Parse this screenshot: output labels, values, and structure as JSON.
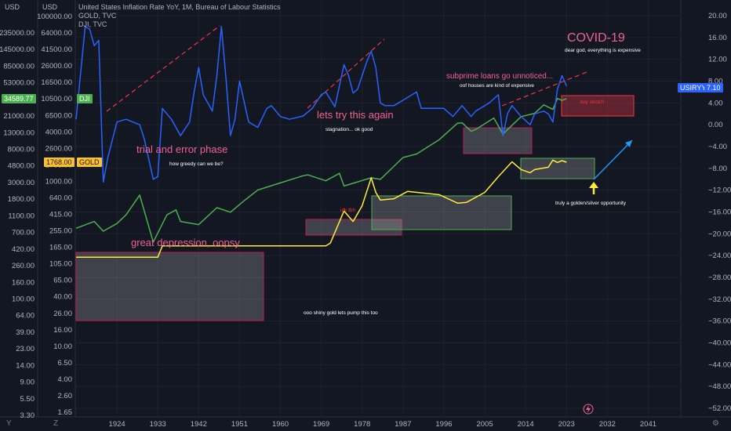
{
  "legend": {
    "line1": "United States Inflation Rate YoY, 1M, Bureau of Labour Statistics",
    "line2": "GOLD, TVC",
    "line3": "DJI, TVC"
  },
  "left_axis_1": {
    "unit": "USD",
    "ticks": [
      "235000.00",
      "145000.00",
      "85000.00",
      "53000.00",
      "34589.77",
      "21000.00",
      "13000.00",
      "8000.00",
      "4800.00",
      "3000.00",
      "1800.00",
      "1100.00",
      "700.00",
      "420.00",
      "260.00",
      "160.00",
      "100.00",
      "64.00",
      "39.00",
      "23.00",
      "14.00",
      "9.00",
      "5.50",
      "3.30"
    ]
  },
  "left_axis_2": {
    "unit": "USD",
    "ticks": [
      "100000.00",
      "64000.00",
      "41500.00",
      "26000.00",
      "16500.00",
      "10500.00",
      "6500.00",
      "4000.00",
      "2600.00",
      "1768.00",
      "1000.00",
      "640.00",
      "415.00",
      "255.00",
      "165.00",
      "105.00",
      "65.00",
      "40.00",
      "26.00",
      "16.00",
      "10.00",
      "6.50",
      "4.00",
      "2.60",
      "1.65"
    ]
  },
  "right_axis": {
    "ticks": [
      "20.00",
      "16.00",
      "12.00",
      "8.00",
      "4.00",
      "0.00",
      "−4.00",
      "−8.00",
      "−12.00",
      "−16.00",
      "−20.00",
      "−24.00",
      "−28.00",
      "−32.00",
      "−36.00",
      "−40.00",
      "−44.00",
      "−48.00",
      "−52.00"
    ]
  },
  "x_axis": {
    "ticks": [
      "1924",
      "1933",
      "1942",
      "1951",
      "1960",
      "1969",
      "1978",
      "1987",
      "1996",
      "2005",
      "2014",
      "2023",
      "2032",
      "2041"
    ]
  },
  "price_tags": {
    "dji_value": "34589.77",
    "dji_label": "DJI",
    "gold_value": "1768.00",
    "gold_label": "GOLD",
    "usiryy_label": "USIRYY",
    "usiryy_value": "7.10"
  },
  "corners": {
    "y_button": "Y",
    "z_button": "Z",
    "settings": "⚙"
  },
  "annotations": {
    "covid_title": "COVID-19",
    "covid_sub": "dear god, everything is expensive",
    "subprime_title": "subprime loans go unnoticed...",
    "subprime_sub": "oof houses are kind of expensive",
    "stagnation_title": "lets try this again",
    "stagnation_sub": "stagnation... ok good",
    "trial_title": "trial and error phase",
    "trial_sub": "how greedy can we be?",
    "idk": "idk tbh",
    "depression_title": "great depression, oopsy",
    "gold_pump": "ooo shiny gold lets pump this too",
    "opportunity": "truly a golden/silver opportunity",
    "red_box_note": "buy stock!!!"
  },
  "colors": {
    "background": "#131722",
    "inflation": "#2962ff",
    "dji": "#4caf50",
    "gold": "#ffeb3b",
    "annotation_pink": "#f06292",
    "dashed_red": "#f23645",
    "arrow_blue": "#2196f3",
    "dji_tag": "#4caf50",
    "gold_tag": "#fbc02d",
    "usiryy_tag": "#2962ff"
  },
  "chart_data": {
    "type": "line",
    "title": "United States Inflation Rate YoY, 1M, Bureau of Labour Statistics",
    "xlabel": "",
    "ylabel": "",
    "x_range": [
      1915,
      2048
    ],
    "series": [
      {
        "name": "United States Inflation Rate YoY",
        "axis": "right",
        "x": [
          1915,
          1917,
          1918,
          1919,
          1920,
          1921,
          1922,
          1924,
          1926,
          1929,
          1930,
          1932,
          1933,
          1934,
          1936,
          1938,
          1940,
          1941,
          1942,
          1943,
          1945,
          1946,
          1947,
          1948,
          1949,
          1950,
          1951,
          1953,
          1955,
          1957,
          1958,
          1960,
          1962,
          1965,
          1967,
          1969,
          1970,
          1972,
          1974,
          1975,
          1976,
          1977,
          1979,
          1980,
          1981,
          1982,
          1983,
          1985,
          1987,
          1990,
          1991,
          1993,
          1996,
          1998,
          2000,
          2002,
          2003,
          2006,
          2008,
          2009,
          2010,
          2011,
          2013,
          2015,
          2016,
          2018,
          2019,
          2020,
          2021,
          2022,
          2023
        ],
        "y": [
          1.0,
          18.0,
          17.5,
          14.5,
          15.5,
          -10.5,
          -6.0,
          0.5,
          1.0,
          0.0,
          -2.5,
          -10.0,
          -9.5,
          3.0,
          1.0,
          -2.0,
          0.5,
          6.0,
          10.5,
          5.5,
          2.5,
          9.0,
          18.0,
          8.5,
          -2.0,
          1.0,
          8.0,
          0.5,
          -0.5,
          3.0,
          3.5,
          1.5,
          1.0,
          1.6,
          3.0,
          5.5,
          6.0,
          3.3,
          11.0,
          9.0,
          5.8,
          6.5,
          11.5,
          13.5,
          10.5,
          4.0,
          3.5,
          3.5,
          4.5,
          6.0,
          3.0,
          3.0,
          3.0,
          1.5,
          3.5,
          1.5,
          2.5,
          4.0,
          5.5,
          -2.0,
          2.0,
          3.5,
          1.5,
          0.0,
          2.0,
          2.5,
          2.0,
          0.5,
          6.5,
          9.0,
          7.1
        ]
      },
      {
        "name": "DJI",
        "axis": "left",
        "x": [
          1915,
          1919,
          1921,
          1924,
          1926,
          1929,
          1932,
          1935,
          1937,
          1938,
          1942,
          1946,
          1949,
          1952,
          1955,
          1960,
          1965,
          1966,
          1970,
          1973,
          1974,
          1980,
          1982,
          1987,
          1990,
          1995,
          1999,
          2000,
          2002,
          2003,
          2007,
          2009,
          2013,
          2016,
          2018,
          2020,
          2021,
          2022,
          2023
        ],
        "y": [
          80,
          110,
          70,
          100,
          150,
          380,
          42,
          150,
          190,
          110,
          95,
          210,
          170,
          290,
          480,
          670,
          940,
          980,
          740,
          1050,
          580,
          850,
          790,
          2200,
          2600,
          5100,
          11000,
          11200,
          7500,
          8200,
          14000,
          6600,
          15000,
          17500,
          26000,
          21000,
          35000,
          32000,
          34589.77
        ]
      },
      {
        "name": "GOLD",
        "axis": "left",
        "x": [
          1915,
          1933,
          1934,
          1950,
          1968,
          1970,
          1971,
          1974,
          1976,
          1978,
          1980,
          1981,
          1982,
          1985,
          1988,
          1995,
          1999,
          2001,
          2005,
          2008,
          2011,
          2013,
          2015,
          2016,
          2019,
          2020,
          2021,
          2022,
          2023
        ],
        "y": [
          20.67,
          20.67,
          35,
          35,
          35,
          35,
          40,
          180,
          110,
          230,
          850,
          430,
          300,
          320,
          450,
          385,
          260,
          270,
          430,
          900,
          1800,
          1250,
          1080,
          1250,
          1400,
          1950,
          1750,
          1900,
          1768
        ]
      }
    ]
  }
}
